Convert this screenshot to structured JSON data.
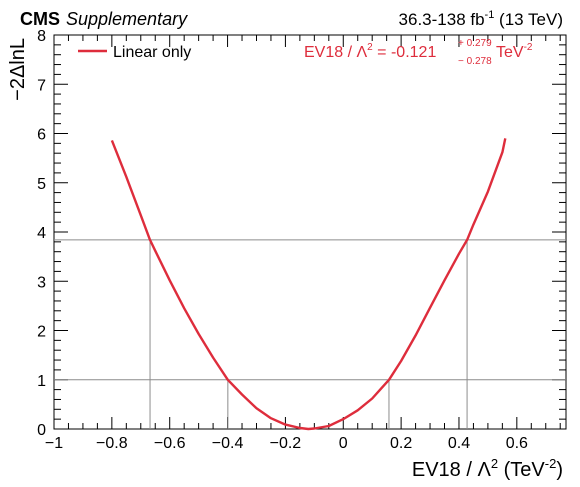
{
  "header": {
    "experiment": "CMS",
    "label": "Supplementary",
    "lumi_main": "36.3-138 fb",
    "lumi_sup": "-1",
    "lumi_tail": " (13 TeV)"
  },
  "annotation": {
    "lhs": "EV18 / Λ",
    "lhs_sup": "2",
    "value": " = -0.121",
    "err_up": "+ 0.279",
    "err_down": "− 0.278",
    "unit_main": " TeV",
    "unit_sup": "-2"
  },
  "colors": {
    "curve": "#de2d3c",
    "reference": "#8c8c8c",
    "axis": "#000000"
  },
  "chart_data": {
    "type": "line",
    "xlabel": {
      "main": "EV18 / Λ",
      "sup": "2",
      "unit_open": " (TeV",
      "unit_sup": "-2",
      "unit_close": ")"
    },
    "ylabel": "−2ΔlnL",
    "xlim": [
      -1.0,
      0.77
    ],
    "ylim": [
      0,
      8
    ],
    "x_ticks": [
      -1,
      -0.8,
      -0.6,
      -0.4,
      -0.2,
      0,
      0.2,
      0.4,
      0.6
    ],
    "x_tick_labels": [
      "−1",
      "−0.8",
      "−0.6",
      "−0.4",
      "−0.2",
      "0",
      "0.2",
      "0.4",
      "0.6"
    ],
    "y_ticks": [
      0,
      1,
      2,
      3,
      4,
      5,
      6,
      7,
      8
    ],
    "y_tick_labels": [
      "0",
      "1",
      "2",
      "3",
      "4",
      "5",
      "6",
      "7",
      "8"
    ],
    "series": [
      {
        "name": "Linear only",
        "best_fit": -0.121,
        "x": [
          -0.8,
          -0.75,
          -0.7,
          -0.668,
          -0.65,
          -0.6,
          -0.55,
          -0.5,
          -0.45,
          -0.399,
          -0.35,
          -0.3,
          -0.25,
          -0.2,
          -0.15,
          -0.121,
          -0.1,
          -0.05,
          0.0,
          0.05,
          0.1,
          0.158,
          0.2,
          0.25,
          0.3,
          0.35,
          0.4,
          0.428,
          0.45,
          0.5,
          0.55,
          0.56
        ],
        "y": [
          5.86,
          5.12,
          4.34,
          3.84,
          3.62,
          3.02,
          2.45,
          1.93,
          1.45,
          1.0,
          0.7,
          0.42,
          0.22,
          0.09,
          0.02,
          0.0,
          0.01,
          0.06,
          0.2,
          0.38,
          0.62,
          1.0,
          1.38,
          1.9,
          2.46,
          3.02,
          3.56,
          3.84,
          4.15,
          4.82,
          5.62,
          5.9
        ]
      }
    ],
    "reference_lines": [
      {
        "y": 1.0,
        "x_low": -0.399,
        "x_high": 0.158
      },
      {
        "y": 3.84,
        "x_low": -0.668,
        "x_high": 0.428
      }
    ],
    "legend": {
      "placement": "top-left"
    },
    "grid": false
  }
}
